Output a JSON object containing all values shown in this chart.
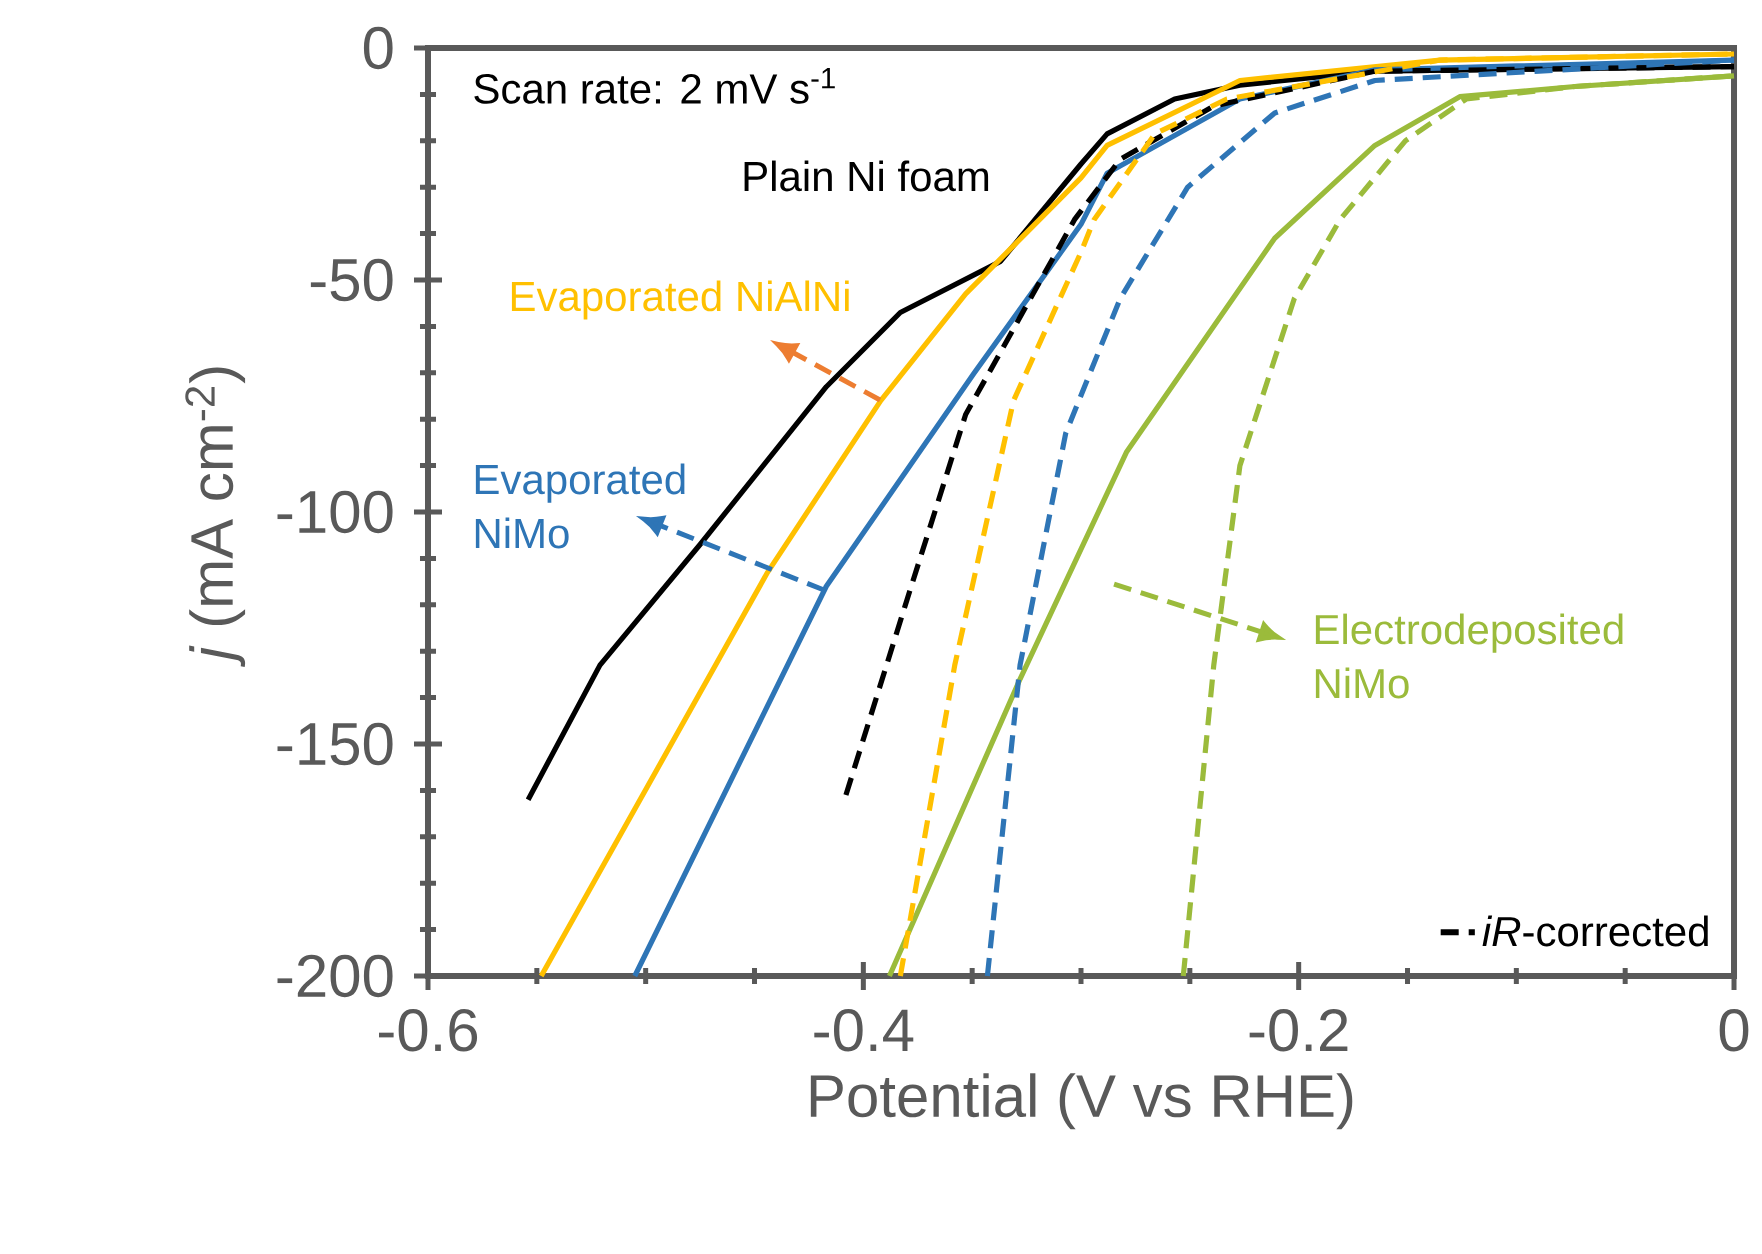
{
  "chart_data": {
    "type": "line",
    "xlabel": "Potential (V vs RHE)",
    "ylabel": "*j* (mA cm$^{-2}$)",
    "xlim": [
      -0.6,
      0
    ],
    "ylim": [
      -200,
      0
    ],
    "xticks": [
      -0.6,
      -0.4,
      -0.2,
      0
    ],
    "yticks": [
      -200,
      -150,
      -100,
      -50,
      0
    ],
    "legend": "bottom right",
    "annotations": [
      "Scan rate: 2 mV s$^{-1}$"
    ],
    "series": [
      {
        "name": "Plain Ni foam",
        "color": "#000000",
        "line_style": "solid",
        "x": [
          -0.554,
          -0.521,
          -0.475,
          -0.417,
          -0.383,
          -0.337,
          -0.3,
          -0.288,
          -0.257,
          -0.227,
          -0.165,
          0
        ],
        "values": [
          -162,
          -133,
          -107,
          -73,
          -57,
          -46,
          -25,
          -18.5,
          -11,
          -8,
          -5,
          -4
        ]
      },
      {
        "name": "Evaporated NiAlNi",
        "color": "#ffc000",
        "line_style": "solid",
        "x": [
          -0.548,
          -0.444,
          -0.392,
          -0.353,
          -0.3,
          -0.288,
          -0.227,
          -0.135,
          0
        ],
        "values": [
          -200,
          -113,
          -76,
          -53,
          -28,
          -21,
          -7,
          -2.6,
          -1.3
        ]
      },
      {
        "name": "Evaporated NiMo",
        "color": "#2e75b6",
        "line_style": "solid",
        "x": [
          -0.505,
          -0.417,
          -0.349,
          -0.3,
          -0.288,
          -0.227,
          -0.165,
          0
        ],
        "values": [
          -200,
          -116,
          -70,
          -38,
          -27,
          -11,
          -4.7,
          -2.6
        ]
      },
      {
        "name": "Electrodeposited NiMo",
        "color": "#9bbb3b",
        "line_style": "solid",
        "x": [
          -0.388,
          -0.328,
          -0.279,
          -0.211,
          -0.165,
          -0.126,
          -0.073,
          0
        ],
        "values": [
          -200,
          -136,
          -87,
          -41,
          -21,
          -10.5,
          -8.3,
          -6
        ]
      },
      {
        "name": "*iR*-corrected",
        "color": "#000000",
        "line_style": "dashed",
        "x": [
          -0.408,
          -0.38,
          -0.353,
          -0.303,
          -0.282,
          -0.239,
          -0.165,
          0
        ],
        "values": [
          -161,
          -119,
          -79,
          -37,
          -24,
          -12.5,
          -5,
          -4
        ]
      },
      {
        "color": "#ffc000",
        "line_style": "dashed",
        "x": [
          -0.383,
          -0.358,
          -0.331,
          -0.3,
          -0.294,
          -0.266,
          -0.233,
          -0.135,
          0
        ],
        "values": [
          -200,
          -133,
          -76,
          -44,
          -37,
          -18.5,
          -11,
          -2.6,
          -1.3
        ]
      },
      {
        "color": "#2e75b6",
        "line_style": "dashed",
        "x": [
          -0.343,
          -0.328,
          -0.307,
          -0.282,
          -0.251,
          -0.211,
          -0.165,
          0
        ],
        "values": [
          -200,
          -133,
          -83,
          -54,
          -30,
          -14,
          -7,
          -2.6
        ]
      },
      {
        "color": "#9bbb3b",
        "line_style": "dashed",
        "x": [
          -0.253,
          -0.239,
          -0.227,
          -0.202,
          -0.181,
          -0.151,
          -0.123,
          -0.073,
          0
        ],
        "values": [
          -200,
          -133,
          -90,
          -54,
          -37,
          -20,
          -11,
          -8.3,
          -6
        ]
      }
    ]
  }
}
